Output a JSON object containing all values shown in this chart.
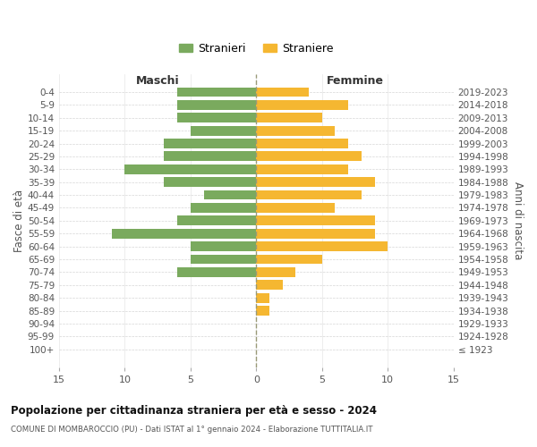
{
  "age_groups": [
    "0-4",
    "5-9",
    "10-14",
    "15-19",
    "20-24",
    "25-29",
    "30-34",
    "35-39",
    "40-44",
    "45-49",
    "50-54",
    "55-59",
    "60-64",
    "65-69",
    "70-74",
    "75-79",
    "80-84",
    "85-89",
    "90-94",
    "95-99",
    "100+"
  ],
  "birth_years": [
    "2019-2023",
    "2014-2018",
    "2009-2013",
    "2004-2008",
    "1999-2003",
    "1994-1998",
    "1989-1993",
    "1984-1988",
    "1979-1983",
    "1974-1978",
    "1969-1973",
    "1964-1968",
    "1959-1963",
    "1954-1958",
    "1949-1953",
    "1944-1948",
    "1939-1943",
    "1934-1938",
    "1929-1933",
    "1924-1928",
    "≤ 1923"
  ],
  "maschi": [
    6,
    6,
    6,
    5,
    7,
    7,
    10,
    7,
    4,
    5,
    6,
    11,
    5,
    5,
    6,
    0,
    0,
    0,
    0,
    0,
    0
  ],
  "femmine": [
    4,
    7,
    5,
    6,
    7,
    8,
    7,
    9,
    8,
    6,
    9,
    9,
    10,
    5,
    3,
    2,
    1,
    1,
    0,
    0,
    0
  ],
  "male_color": "#7aaa5e",
  "female_color": "#f5b731",
  "title": "Popolazione per cittadinanza straniera per età e sesso - 2024",
  "subtitle": "COMUNE DI MOMBAROCCIO (PU) - Dati ISTAT al 1° gennaio 2024 - Elaborazione TUTTITALIA.IT",
  "ylabel_left": "Fasce di età",
  "ylabel_right": "Anni di nascita",
  "xlabel_left": "Maschi",
  "xlabel_right": "Femmine",
  "legend_male": "Stranieri",
  "legend_female": "Straniere",
  "xlim": 15,
  "background_color": "#ffffff",
  "grid_color": "#cccccc",
  "bar_height": 0.75,
  "fig_width": 6.0,
  "fig_height": 5.0,
  "dpi": 100
}
